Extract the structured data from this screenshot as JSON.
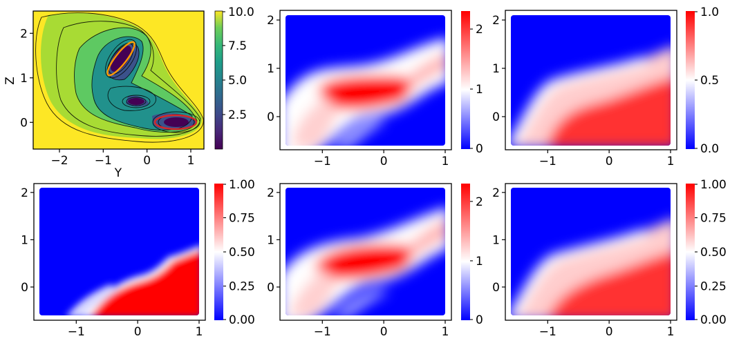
{
  "chart_data": [
    {
      "type": "contour",
      "xlabel": "Y",
      "ylabel": "Z",
      "xlim": [
        -2.6,
        1.3
      ],
      "ylim": [
        -0.6,
        2.5
      ],
      "xticks": [
        "−2",
        "−1",
        "0",
        "1"
      ],
      "yticks": [
        "0",
        "1",
        "2"
      ],
      "xtick_values": [
        -2,
        -1,
        0,
        1
      ],
      "ytick_values": [
        0,
        1,
        2
      ],
      "colormap": "viridis",
      "colorbar": {
        "min": 0,
        "max": 10,
        "ticks": [
          "2.5",
          "5.0",
          "7.5",
          "10.0"
        ],
        "tick_values": [
          2.5,
          5.0,
          7.5,
          10.0
        ]
      },
      "minima": [
        {
          "x": -0.55,
          "y": 1.45
        },
        {
          "x": -0.05,
          "y": 0.47
        },
        {
          "x": 0.62,
          "y": 0.02
        }
      ],
      "highlight_ellipses": [
        {
          "color": "#ff9900",
          "center": [
            -0.55,
            1.45
          ]
        },
        {
          "color": "#d62728",
          "center": [
            0.62,
            0.02
          ]
        }
      ]
    },
    {
      "type": "heatmap",
      "xlim": [
        -1.6,
        1.0
      ],
      "ylim": [
        -0.6,
        2.1
      ],
      "xticks": [
        "−1",
        "0",
        "1"
      ],
      "yticks": [
        "0",
        "1",
        "2"
      ],
      "xtick_values": [
        -1,
        0,
        1
      ],
      "ytick_values": [
        0,
        1,
        2
      ],
      "colormap": "bwr",
      "colorbar": {
        "min": 0,
        "max": 2.3,
        "ticks": [
          "0",
          "1",
          "2"
        ],
        "tick_values": [
          0,
          1,
          2
        ]
      }
    },
    {
      "type": "heatmap",
      "xlim": [
        -1.6,
        1.0
      ],
      "ylim": [
        -0.6,
        2.1
      ],
      "xticks": [
        "−1",
        "0",
        "1"
      ],
      "yticks": [
        "0",
        "1",
        "2"
      ],
      "xtick_values": [
        -1,
        0,
        1
      ],
      "ytick_values": [
        0,
        1,
        2
      ],
      "colormap": "bwr",
      "colorbar": {
        "min": 0,
        "max": 1.0,
        "ticks": [
          "0.0",
          "0.5",
          "1.0"
        ],
        "tick_values": [
          0,
          0.5,
          1.0
        ]
      }
    },
    {
      "type": "heatmap",
      "xlim": [
        -1.6,
        1.0
      ],
      "ylim": [
        -0.6,
        2.1
      ],
      "xticks": [
        "−1",
        "0",
        "1"
      ],
      "yticks": [
        "0",
        "1",
        "2"
      ],
      "xtick_values": [
        -1,
        0,
        1
      ],
      "ytick_values": [
        0,
        1,
        2
      ],
      "colormap": "bwr",
      "colorbar": {
        "min": 0,
        "max": 1.0,
        "ticks": [
          "0.00",
          "0.25",
          "0.50",
          "0.75",
          "1.00"
        ],
        "tick_values": [
          0,
          0.25,
          0.5,
          0.75,
          1.0
        ]
      }
    },
    {
      "type": "heatmap",
      "xlim": [
        -1.6,
        1.0
      ],
      "ylim": [
        -0.6,
        2.1
      ],
      "xticks": [
        "−1",
        "0",
        "1"
      ],
      "yticks": [
        "0",
        "1",
        "2"
      ],
      "xtick_values": [
        -1,
        0,
        1
      ],
      "ytick_values": [
        0,
        1,
        2
      ],
      "colormap": "bwr",
      "colorbar": {
        "min": 0,
        "max": 2.3,
        "ticks": [
          "0",
          "1",
          "2"
        ],
        "tick_values": [
          0,
          1,
          2
        ]
      }
    },
    {
      "type": "heatmap",
      "xlim": [
        -1.6,
        1.0
      ],
      "ylim": [
        -0.6,
        2.1
      ],
      "xticks": [
        "−1",
        "0",
        "1"
      ],
      "yticks": [
        "0",
        "1",
        "2"
      ],
      "xtick_values": [
        -1,
        0,
        1
      ],
      "ytick_values": [
        0,
        1,
        2
      ],
      "colormap": "bwr",
      "colorbar": {
        "min": 0,
        "max": 1.0,
        "ticks": [
          "0.00",
          "0.25",
          "0.50",
          "0.75",
          "1.00"
        ],
        "tick_values": [
          0,
          0.25,
          0.5,
          0.75,
          1.0
        ]
      }
    }
  ]
}
